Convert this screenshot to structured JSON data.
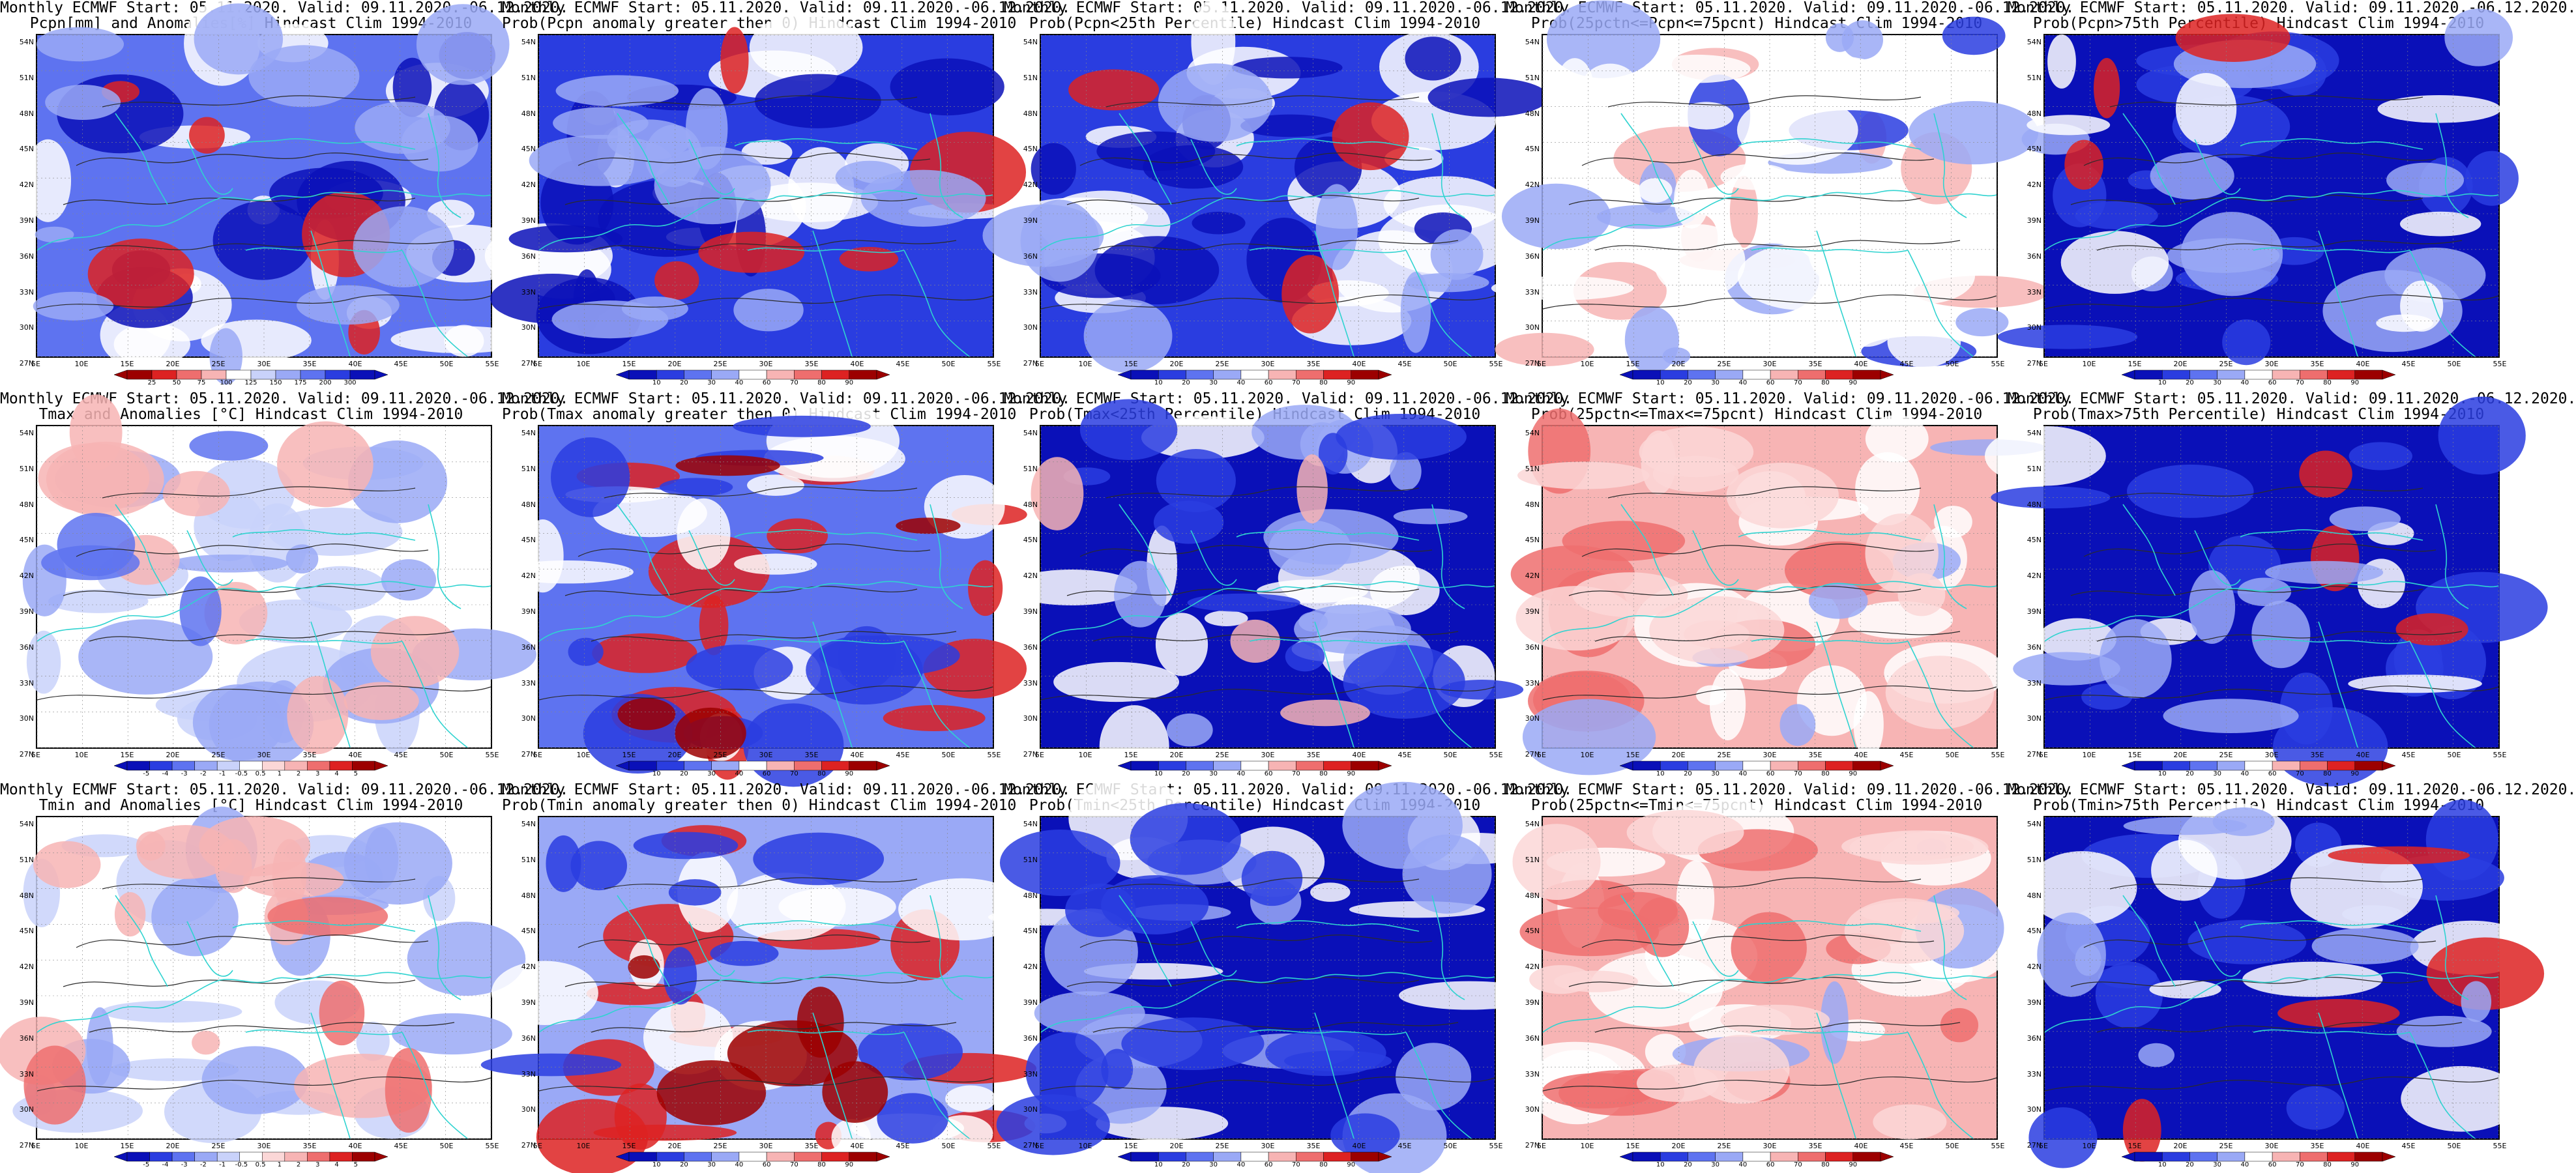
{
  "page": {
    "lat_labels": [
      "54N",
      "51N",
      "48N",
      "45N",
      "42N",
      "39N",
      "36N",
      "33N",
      "30N",
      "27N"
    ],
    "lon_labels": [
      "5E",
      "10E",
      "15E",
      "20E",
      "25E",
      "30E",
      "35E",
      "40E",
      "45E",
      "50E",
      "55E"
    ]
  },
  "panels": [
    {
      "title1": "Monthly ECMWF Start: 05.11.2020. Valid: 09.11.2020.-06.12.2020.",
      "title2": "Pcpn[mm] and Anomalies[%] Hindcast Clim 1994-2010",
      "scale": "anom_pcp",
      "ticks": [
        "25",
        "50",
        "75",
        "100",
        "125",
        "150",
        "175",
        "200",
        "300"
      ],
      "pattern": "pcpn_anom"
    },
    {
      "title1": "Monthly ECMWF Start: 05.11.2020. Valid: 09.11.2020.-06.12.2020.",
      "title2": "Prob(Pcpn anomaly greater then 0) Hindcast Clim 1994-2010",
      "scale": "prob",
      "ticks": [
        "10",
        "20",
        "30",
        "40",
        "60",
        "70",
        "80",
        "90"
      ],
      "pattern": "pcpn_prob_pos"
    },
    {
      "title1": "Monthly ECMWF Start: 05.11.2020. Valid: 09.11.2020.-06.12.2020.",
      "title2": "Prob(Pcpn<25th Percentile) Hindcast Clim 1994-2010",
      "scale": "prob",
      "ticks": [
        "10",
        "20",
        "30",
        "40",
        "60",
        "70",
        "80",
        "90"
      ],
      "pattern": "pcpn_low"
    },
    {
      "title1": "Monthly ECMWF Start: 05.11.2020. Valid: 09.11.2020.-06.12.2020.",
      "title2": "Prob(25pctn<=Pcpn<=75pcnt) Hindcast Clim 1994-2010",
      "scale": "prob",
      "ticks": [
        "10",
        "20",
        "30",
        "40",
        "60",
        "70",
        "80",
        "90"
      ],
      "pattern": "pcpn_mid"
    },
    {
      "title1": "Monthly ECMWF Start: 05.11.2020. Valid: 09.11.2020.-06.12.2020.",
      "title2": "Prob(Pcpn>75th Percentile) Hindcast Clim 1994-2010",
      "scale": "prob",
      "ticks": [
        "10",
        "20",
        "30",
        "40",
        "60",
        "70",
        "80",
        "90"
      ],
      "pattern": "pcpn_high"
    },
    {
      "title1": "Monthly ECMWF Start: 05.11.2020. Valid: 09.11.2020.-06.12.2020.",
      "title2": "Tmax and Anomalies [°C] Hindcast Clim 1994-2010",
      "scale": "anom_t",
      "ticks": [
        "-5",
        "-4",
        "-3",
        "-2",
        "-1",
        "-0.5",
        "0.5",
        "1",
        "2",
        "3",
        "4",
        "5"
      ],
      "pattern": "tmax_anom"
    },
    {
      "title1": "Monthly ECMWF Start: 05.11.2020. Valid: 09.11.2020.-06.12.2020.",
      "title2": "Prob(Tmax anomaly greater then 0) Hindcast Clim 1994-2010",
      "scale": "prob",
      "ticks": [
        "10",
        "20",
        "30",
        "40",
        "60",
        "70",
        "80",
        "90"
      ],
      "pattern": "tmax_prob_pos"
    },
    {
      "title1": "Monthly ECMWF Start: 05.11.2020. Valid: 09.11.2020.-06.12.2020.",
      "title2": "Prob(Tmax<25th Percentile) Hindcast Clim 1994-2010",
      "scale": "prob",
      "ticks": [
        "10",
        "20",
        "30",
        "40",
        "60",
        "70",
        "80",
        "90"
      ],
      "pattern": "tmax_low"
    },
    {
      "title1": "Monthly ECMWF Start: 05.11.2020. Valid: 09.11.2020.-06.12.2020.",
      "title2": "Prob(25pctn<=Tmax<=75pcnt) Hindcast Clim 1994-2010",
      "scale": "prob",
      "ticks": [
        "10",
        "20",
        "30",
        "40",
        "60",
        "70",
        "80",
        "90"
      ],
      "pattern": "tmax_mid"
    },
    {
      "title1": "Monthly ECMWF Start: 05.11.2020. Valid: 09.11.2020.-06.12.2020.",
      "title2": "Prob(Tmax>75th Percentile) Hindcast Clim 1994-2010",
      "scale": "prob",
      "ticks": [
        "10",
        "20",
        "30",
        "40",
        "60",
        "70",
        "80",
        "90"
      ],
      "pattern": "tmax_high"
    },
    {
      "title1": "Monthly ECMWF Start: 05.11.2020. Valid: 09.11.2020.-06.12.2020.",
      "title2": "Tmin and Anomalies [°C] Hindcast Clim 1994-2010",
      "scale": "anom_t",
      "ticks": [
        "-5",
        "-4",
        "-3",
        "-2",
        "-1",
        "-0.5",
        "0.5",
        "1",
        "2",
        "3",
        "4",
        "5"
      ],
      "pattern": "tmin_anom"
    },
    {
      "title1": "Monthly ECMWF Start: 05.11.2020. Valid: 09.11.2020.-06.12.2020.",
      "title2": "Prob(Tmin anomaly greater then 0) Hindcast Clim 1994-2010",
      "scale": "prob",
      "ticks": [
        "10",
        "20",
        "30",
        "40",
        "60",
        "70",
        "80",
        "90"
      ],
      "pattern": "tmin_prob_pos"
    },
    {
      "title1": "Monthly ECMWF Start: 05.11.2020. Valid: 09.11.2020.-06.12.2020.",
      "title2": "Prob(Tmin<25th Percentile) Hindcast Clim 1994-2010",
      "scale": "prob",
      "ticks": [
        "10",
        "20",
        "30",
        "40",
        "60",
        "70",
        "80",
        "90"
      ],
      "pattern": "tmin_low"
    },
    {
      "title1": "Monthly ECMWF Start: 05.11.2020. Valid: 09.11.2020.-06.12.2020.",
      "title2": "Prob(25pctn<=Tmin<=75pcnt) Hindcast Clim 1994-2010",
      "scale": "prob",
      "ticks": [
        "10",
        "20",
        "30",
        "40",
        "60",
        "70",
        "80",
        "90"
      ],
      "pattern": "tmin_mid"
    },
    {
      "title1": "Monthly ECMWF Start: 05.11.2020. Valid: 09.11.2020.-06.12.2020.",
      "title2": "Prob(Tmin>75th Percentile) Hindcast Clim 1994-2010",
      "scale": "prob",
      "ticks": [
        "10",
        "20",
        "30",
        "40",
        "60",
        "70",
        "80",
        "90"
      ],
      "pattern": "tmin_high"
    }
  ],
  "colors": {
    "coast": "#2fd3d0",
    "contour": "#2b2b2b",
    "scale_prob": [
      "#0a10b8",
      "#2a3de0",
      "#5e73f0",
      "#9aa9f6",
      "#ffffff",
      "#f7b4b4",
      "#ee6e6e",
      "#dd2222",
      "#9c0000"
    ],
    "scale_anom_pcp": [
      "#9c0000",
      "#dd2222",
      "#ee6e6e",
      "#f7b4b4",
      "#ffffff",
      "#c9d2fa",
      "#9aa9f6",
      "#5e73f0",
      "#2a3de0",
      "#0a10b8"
    ],
    "scale_anom_t": [
      "#0a10b8",
      "#2a3de0",
      "#5e73f0",
      "#9aa9f6",
      "#c9d2fa",
      "#ffffff",
      "#fbd7d7",
      "#f7b4b4",
      "#ee6e6e",
      "#dd2222",
      "#9c0000"
    ]
  }
}
